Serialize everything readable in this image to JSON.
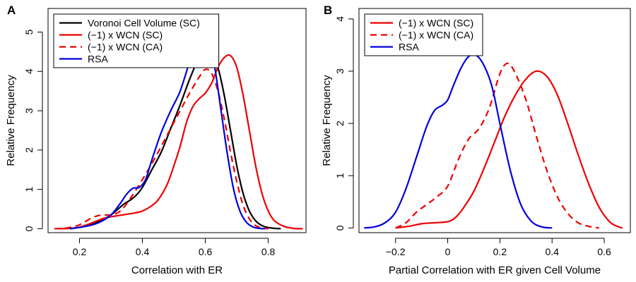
{
  "chart_data": [
    {
      "type": "line",
      "panel_label": "A",
      "title": "",
      "xlabel": "Correlation with ER",
      "ylabel": "Relative Frequency",
      "xlim": [
        0.1,
        0.92
      ],
      "ylim": [
        -0.1,
        5.6
      ],
      "xticks": [
        0.2,
        0.4,
        0.6,
        0.8
      ],
      "yticks": [
        0,
        1,
        2,
        3,
        4,
        5
      ],
      "grid": false,
      "legend_position": "top-left",
      "series": [
        {
          "name": "Voronoi Cell Volume (SC)",
          "color": "#000000",
          "dash": "solid",
          "x": [
            0.17,
            0.22,
            0.26,
            0.3,
            0.34,
            0.36,
            0.38,
            0.4,
            0.43,
            0.46,
            0.49,
            0.52,
            0.55,
            0.58,
            0.6,
            0.62,
            0.64,
            0.66,
            0.68,
            0.7,
            0.72,
            0.74,
            0.76,
            0.78,
            0.8,
            0.82,
            0.84
          ],
          "y": [
            0,
            0.07,
            0.18,
            0.35,
            0.62,
            0.72,
            0.85,
            1.05,
            1.5,
            1.95,
            2.55,
            3.15,
            3.8,
            4.35,
            4.52,
            4.45,
            4.1,
            3.4,
            2.5,
            1.6,
            0.9,
            0.45,
            0.2,
            0.08,
            0.03,
            0.01,
            0
          ]
        },
        {
          "name": "(−1) x WCN (SC)",
          "color": "#ee0000",
          "dash": "solid",
          "x": [
            0.13,
            0.17,
            0.2,
            0.24,
            0.28,
            0.32,
            0.36,
            0.4,
            0.44,
            0.46,
            0.48,
            0.5,
            0.52,
            0.54,
            0.56,
            0.58,
            0.6,
            0.62,
            0.64,
            0.66,
            0.68,
            0.7,
            0.72,
            0.74,
            0.76,
            0.78,
            0.8,
            0.82,
            0.85,
            0.88,
            0.91
          ],
          "y": [
            0,
            0.01,
            0.04,
            0.15,
            0.27,
            0.33,
            0.38,
            0.45,
            0.65,
            0.85,
            1.15,
            1.6,
            2.1,
            2.7,
            3.1,
            3.3,
            3.45,
            3.7,
            4.1,
            4.35,
            4.4,
            4.1,
            3.4,
            2.5,
            1.6,
            0.9,
            0.45,
            0.2,
            0.06,
            0.01,
            0
          ]
        },
        {
          "name": "(−1) x WCN (CA)",
          "color": "#ee0000",
          "dash": "dashed",
          "x": [
            0.12,
            0.16,
            0.2,
            0.24,
            0.27,
            0.3,
            0.33,
            0.36,
            0.4,
            0.44,
            0.48,
            0.52,
            0.55,
            0.58,
            0.6,
            0.62,
            0.64,
            0.66,
            0.68,
            0.7,
            0.72,
            0.74,
            0.76,
            0.78,
            0.8
          ],
          "y": [
            0,
            0.02,
            0.1,
            0.28,
            0.35,
            0.35,
            0.45,
            0.75,
            1.25,
            1.8,
            2.4,
            3.0,
            3.45,
            3.85,
            4.05,
            3.95,
            3.5,
            2.8,
            1.95,
            1.2,
            0.6,
            0.25,
            0.08,
            0.02,
            0
          ]
        },
        {
          "name": "RSA",
          "color": "#0000dd",
          "dash": "solid",
          "x": [
            0.17,
            0.22,
            0.26,
            0.3,
            0.33,
            0.35,
            0.37,
            0.39,
            0.41,
            0.43,
            0.46,
            0.49,
            0.52,
            0.55,
            0.57,
            0.59,
            0.61,
            0.63,
            0.65,
            0.67,
            0.69,
            0.71,
            0.73,
            0.75,
            0.77,
            0.79
          ],
          "y": [
            0,
            0.06,
            0.15,
            0.35,
            0.65,
            0.88,
            1.03,
            1.05,
            1.25,
            1.75,
            2.45,
            3.0,
            3.5,
            4.25,
            4.75,
            5.03,
            4.85,
            4.1,
            3.0,
            1.9,
            1.0,
            0.45,
            0.17,
            0.05,
            0.01,
            0
          ]
        }
      ]
    },
    {
      "type": "line",
      "panel_label": "B",
      "title": "",
      "xlabel": "Partial Correlation with ER given Cell Volume",
      "ylabel": "Relative Frequency",
      "xlim": [
        -0.34,
        0.7
      ],
      "ylim": [
        -0.09,
        4.2
      ],
      "xticks": [
        -0.2,
        0.0,
        0.2,
        0.4,
        0.6
      ],
      "yticks": [
        0,
        1,
        2,
        3,
        4
      ],
      "grid": false,
      "legend_position": "top-left",
      "series": [
        {
          "name": "(−1) x WCN (SC)",
          "color": "#ee0000",
          "dash": "solid",
          "x": [
            -0.2,
            -0.15,
            -0.1,
            -0.05,
            0.0,
            0.03,
            0.06,
            0.1,
            0.14,
            0.18,
            0.22,
            0.26,
            0.3,
            0.34,
            0.38,
            0.42,
            0.46,
            0.5,
            0.54,
            0.58,
            0.62,
            0.65,
            0.67
          ],
          "y": [
            0,
            0.03,
            0.08,
            0.1,
            0.12,
            0.2,
            0.38,
            0.7,
            1.15,
            1.65,
            2.15,
            2.55,
            2.85,
            3.0,
            2.9,
            2.55,
            2.0,
            1.4,
            0.85,
            0.4,
            0.12,
            0.03,
            0
          ]
        },
        {
          "name": "(−1) x WCN (CA)",
          "color": "#ee0000",
          "dash": "dashed",
          "x": [
            -0.2,
            -0.16,
            -0.12,
            -0.08,
            -0.04,
            0.0,
            0.04,
            0.08,
            0.12,
            0.16,
            0.2,
            0.23,
            0.26,
            0.3,
            0.34,
            0.38,
            0.42,
            0.46,
            0.5,
            0.54,
            0.58
          ],
          "y": [
            0,
            0.1,
            0.3,
            0.45,
            0.6,
            0.8,
            1.3,
            1.7,
            1.9,
            2.3,
            2.95,
            3.15,
            2.95,
            2.45,
            1.75,
            1.1,
            0.6,
            0.28,
            0.1,
            0.03,
            0
          ]
        },
        {
          "name": "RSA",
          "color": "#0000dd",
          "dash": "solid",
          "x": [
            -0.32,
            -0.28,
            -0.24,
            -0.2,
            -0.16,
            -0.12,
            -0.08,
            -0.05,
            -0.02,
            0.0,
            0.02,
            0.05,
            0.08,
            0.11,
            0.14,
            0.17,
            0.2,
            0.24,
            0.28,
            0.32,
            0.36,
            0.4
          ],
          "y": [
            0,
            0.02,
            0.1,
            0.3,
            0.75,
            1.35,
            1.95,
            2.25,
            2.35,
            2.45,
            2.7,
            3.05,
            3.28,
            3.3,
            3.1,
            2.7,
            2.0,
            1.1,
            0.45,
            0.13,
            0.02,
            0
          ]
        }
      ]
    }
  ]
}
